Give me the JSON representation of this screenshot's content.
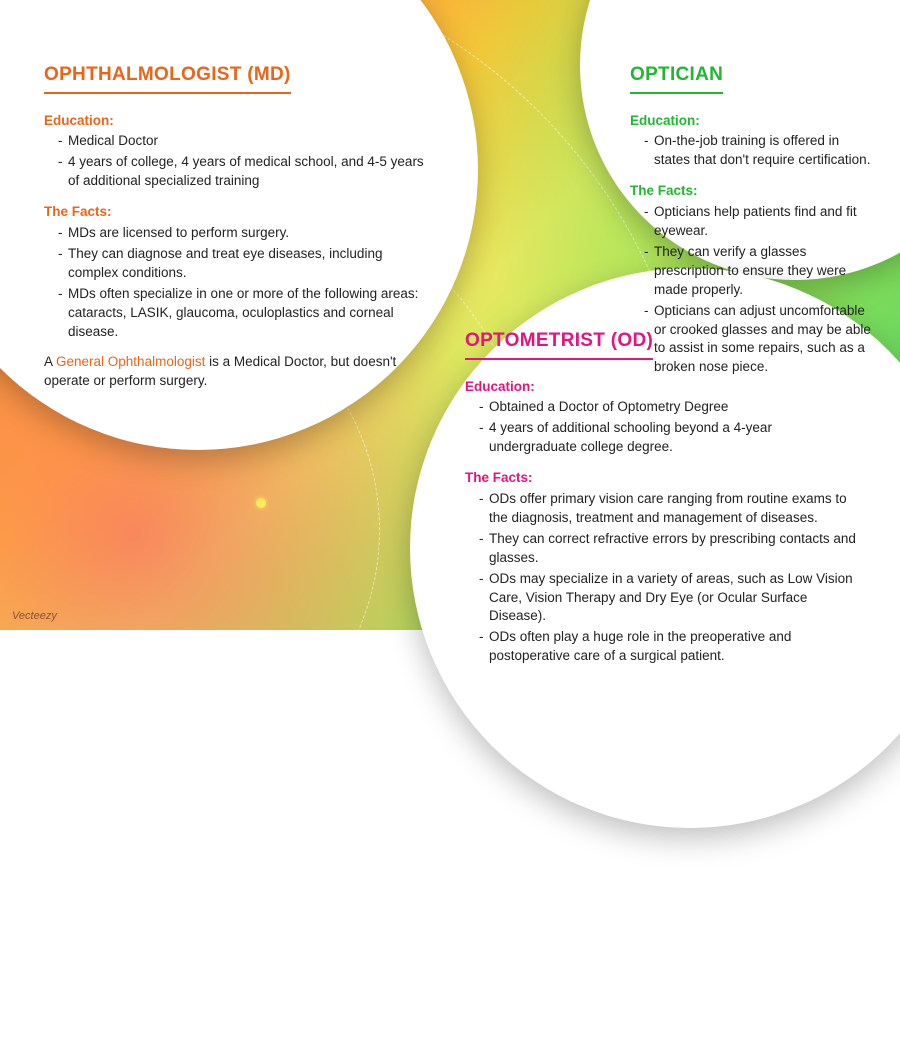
{
  "colors": {
    "ophthalmologist": "#e8651a",
    "optometrist": "#e01580",
    "optician": "#1fb82e",
    "circle_bg": "#ffffff",
    "text": "#222222"
  },
  "ophthalmologist": {
    "title": "OPHTHALMOLOGIST (MD)",
    "education_label": "Education:",
    "education": [
      "Medical Doctor",
      "4 years of college, 4 years of medical school, and 4-5 years of additional specialized training"
    ],
    "facts_label": "The Facts:",
    "facts": [
      "MDs are licensed to perform surgery.",
      "They can diagnose and treat eye diseases, including complex conditions.",
      "MDs often specialize in one or more of the following areas: cataracts, LASIK, glaucoma, oculoplastics and corneal disease."
    ],
    "footnote_prefix": "A ",
    "footnote_highlight": "General Ophthalmologist",
    "footnote_suffix": " is a Medical Doctor, but doesn't operate or perform surgery."
  },
  "optometrist": {
    "title": "OPTOMETRIST (OD)",
    "education_label": "Education:",
    "education": [
      "Obtained a Doctor of Optometry Degree",
      "4 years of additional schooling beyond a 4-year undergraduate college degree."
    ],
    "facts_label": "The Facts:",
    "facts": [
      "ODs offer primary vision care ranging from routine exams to the diagnosis, treatment and management of diseases.",
      "They can correct refractive errors by prescribing contacts and glasses.",
      "ODs may specialize in a variety of areas, such as Low Vision Care, Vision Therapy and Dry Eye (or Ocular Surface Disease).",
      "ODs often play a huge role in the preoperative and postoperative care of a surgical patient."
    ]
  },
  "optician": {
    "title": "OPTICIAN",
    "education_label": "Education:",
    "education": [
      "On-the-job training is offered in states that don't require certification."
    ],
    "facts_label": "The Facts:",
    "facts": [
      "Opticians help patients find and fit eyewear.",
      "They can verify a glasses prescription to ensure they were made properly.",
      "Opticians can adjust uncomfortable or crooked glasses and may be able to assist in some repairs, such as a broken nose piece."
    ]
  },
  "credit": "Vecteezy"
}
